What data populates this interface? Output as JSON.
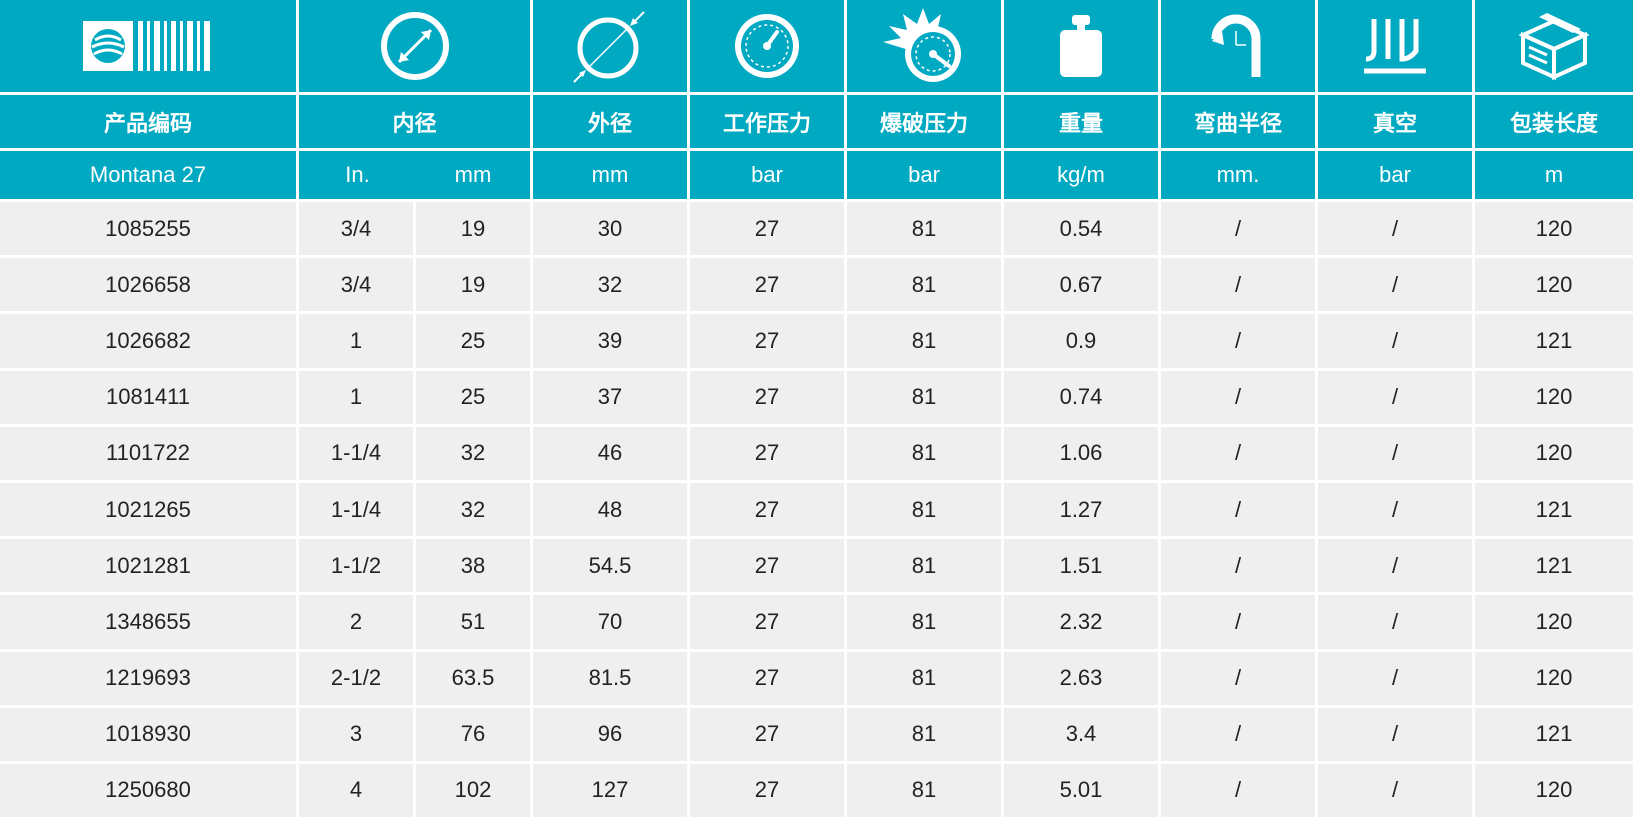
{
  "colors": {
    "header_bg": "#00a9c2",
    "row_bg": "#efefef",
    "header_text": "#ffffff",
    "body_text": "#222222"
  },
  "icons": [
    "barcode-globe-icon",
    "inner-diameter-icon",
    "outer-diameter-icon",
    "working-pressure-gauge-icon",
    "burst-pressure-icon",
    "weight-icon",
    "bend-radius-icon",
    "vacuum-icon",
    "package-box-icon"
  ],
  "labels": {
    "code": "产品编码",
    "inner_diameter": "内径",
    "outer_diameter": "外径",
    "working_pressure": "工作压力",
    "burst_pressure": "爆破压力",
    "weight": "重量",
    "bend_radius": "弯曲半径",
    "vacuum": "真空",
    "package_length": "包装长度"
  },
  "units": {
    "product": "Montana 27",
    "inch": "In.",
    "mm": "mm",
    "od": "mm",
    "wp": "bar",
    "bp": "bar",
    "weight": "kg/m",
    "bend": "mm.",
    "vacuum": "bar",
    "length": "m"
  },
  "rows": [
    {
      "code": "1085255",
      "inch": "3/4",
      "mm": "19",
      "od": "30",
      "wp": "27",
      "bp": "81",
      "weight": "0.54",
      "bend": "/",
      "vacuum": "/",
      "length": "120"
    },
    {
      "code": "1026658",
      "inch": "3/4",
      "mm": "19",
      "od": "32",
      "wp": "27",
      "bp": "81",
      "weight": "0.67",
      "bend": "/",
      "vacuum": "/",
      "length": "120"
    },
    {
      "code": "1026682",
      "inch": "1",
      "mm": "25",
      "od": "39",
      "wp": "27",
      "bp": "81",
      "weight": "0.9",
      "bend": "/",
      "vacuum": "/",
      "length": "121"
    },
    {
      "code": "1081411",
      "inch": "1",
      "mm": "25",
      "od": "37",
      "wp": "27",
      "bp": "81",
      "weight": "0.74",
      "bend": "/",
      "vacuum": "/",
      "length": "120"
    },
    {
      "code": "1101722",
      "inch": "1-1/4",
      "mm": "32",
      "od": "46",
      "wp": "27",
      "bp": "81",
      "weight": "1.06",
      "bend": "/",
      "vacuum": "/",
      "length": "120"
    },
    {
      "code": "1021265",
      "inch": "1-1/4",
      "mm": "32",
      "od": "48",
      "wp": "27",
      "bp": "81",
      "weight": "1.27",
      "bend": "/",
      "vacuum": "/",
      "length": "121"
    },
    {
      "code": "1021281",
      "inch": "1-1/2",
      "mm": "38",
      "od": "54.5",
      "wp": "27",
      "bp": "81",
      "weight": "1.51",
      "bend": "/",
      "vacuum": "/",
      "length": "121"
    },
    {
      "code": "1348655",
      "inch": "2",
      "mm": "51",
      "od": "70",
      "wp": "27",
      "bp": "81",
      "weight": "2.32",
      "bend": "/",
      "vacuum": "/",
      "length": "120"
    },
    {
      "code": "1219693",
      "inch": "2-1/2",
      "mm": "63.5",
      "od": "81.5",
      "wp": "27",
      "bp": "81",
      "weight": "2.63",
      "bend": "/",
      "vacuum": "/",
      "length": "120"
    },
    {
      "code": "1018930",
      "inch": "3",
      "mm": "76",
      "od": "96",
      "wp": "27",
      "bp": "81",
      "weight": "3.4",
      "bend": "/",
      "vacuum": "/",
      "length": "121"
    },
    {
      "code": "1250680",
      "inch": "4",
      "mm": "102",
      "od": "127",
      "wp": "27",
      "bp": "81",
      "weight": "5.01",
      "bend": "/",
      "vacuum": "/",
      "length": "120"
    }
  ]
}
